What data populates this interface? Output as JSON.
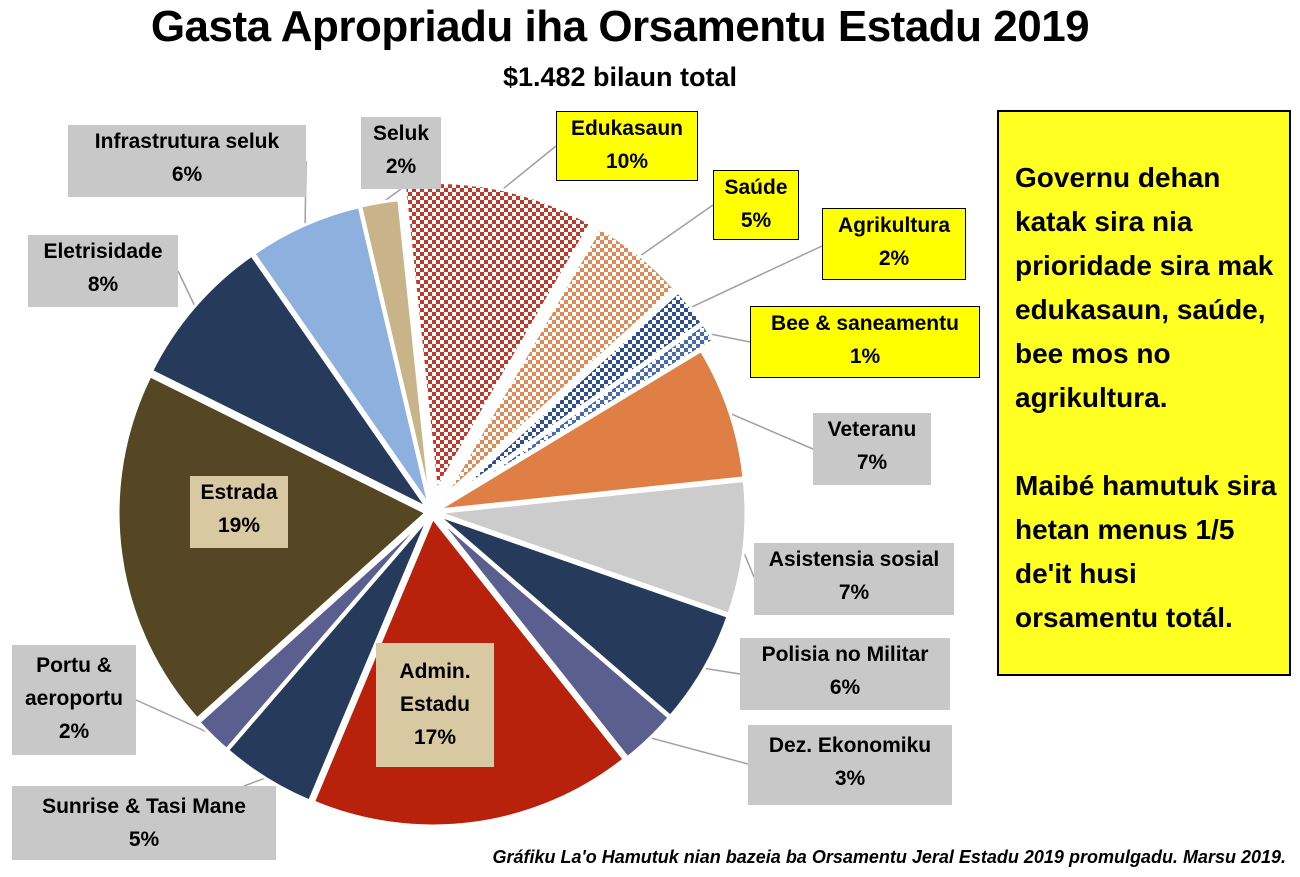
{
  "title": "Gasta Apropriadu iha Orsamentu Estadu 2019",
  "subtitle": "$1.482 bilaun total",
  "chart_data": {
    "type": "pie",
    "slices": [
      {
        "key": "edukasaun",
        "name": "Edukasaun",
        "value": 10,
        "label": "10%",
        "color": "#c0392b",
        "pattern": "check-red",
        "exploded": true
      },
      {
        "key": "saude",
        "name": "Saúde",
        "value": 5,
        "label": "5%",
        "color": "#e08a58",
        "pattern": "check-orange",
        "exploded": true
      },
      {
        "key": "agrikultura",
        "name": "Agrikultura",
        "value": 2,
        "label": "2%",
        "color": "#2f4f8f",
        "pattern": "check-blue",
        "exploded": true
      },
      {
        "key": "bee",
        "name": "Bee & saneamentu",
        "value": 1,
        "label": "1%",
        "color": "#4a6ab0",
        "pattern": "check-blue2",
        "exploded": true
      },
      {
        "key": "veteranu",
        "name": "Veteranu",
        "value": 7,
        "label": "7%",
        "color": "#e07f45"
      },
      {
        "key": "asistensia",
        "name": "Asistensia sosial",
        "value": 7,
        "label": "7%",
        "color": "#cccccc"
      },
      {
        "key": "polisia",
        "name": "Polisia no Militar",
        "value": 6,
        "label": "6%",
        "color": "#263a5c"
      },
      {
        "key": "dez",
        "name": "Dez. Ekonomiku",
        "value": 3,
        "label": "3%",
        "color": "#5b5f8f"
      },
      {
        "key": "admin",
        "name": "Admin. Estadu",
        "value": 17,
        "label": "17%",
        "color": "#b8210c"
      },
      {
        "key": "sunrise",
        "name": "Sunrise & Tasi Mane",
        "value": 5,
        "label": "5%",
        "color": "#263a5c"
      },
      {
        "key": "portu",
        "name": "Portu & aeroportu",
        "value": 2,
        "label": "2%",
        "color": "#5b5f8f"
      },
      {
        "key": "estrada",
        "name": "Estrada",
        "value": 19,
        "label": "19%",
        "color": "#554624"
      },
      {
        "key": "eletrisidade",
        "name": "Eletrisidade",
        "value": 8,
        "label": "8%",
        "color": "#263a5c"
      },
      {
        "key": "infrastrutura",
        "name": "Infrastrutura seluk",
        "value": 6,
        "label": "6%",
        "color": "#8eb0de"
      },
      {
        "key": "seluk",
        "name": "Seluk",
        "value": 2,
        "label": "2%",
        "color": "#c9b48a"
      }
    ]
  },
  "labels": {
    "edukasaun": {
      "line1": "Edukasaun",
      "line2": "10%"
    },
    "saude": {
      "line1": "Saúde",
      "line2": "5%"
    },
    "agrikultura": {
      "line1": "Agrikultura",
      "line2": "2%"
    },
    "bee": {
      "line1": "Bee & saneamentu",
      "line2": "1%"
    },
    "veteranu": {
      "line1": "Veteranu",
      "line2": "7%"
    },
    "asistensia": {
      "line1": "Asistensia sosial",
      "line2": "7%"
    },
    "polisia": {
      "line1": "Polisia no Militar",
      "line2": "6%"
    },
    "dez": {
      "line1": "Dez. Ekonomiku",
      "line2": "3%"
    },
    "admin": {
      "line1": "Admin.",
      "line2": "Estadu",
      "line3": "17%"
    },
    "sunrise": {
      "line1": "Sunrise & Tasi Mane",
      "line2": "5%"
    },
    "portu": {
      "line1": "Portu &",
      "line2": "aeroportu",
      "line3": "2%"
    },
    "estrada": {
      "line1": "Estrada",
      "line2": "19%"
    },
    "eletrisidade": {
      "line1": "Eletrisidade",
      "line2": "8%"
    },
    "infrastrutura": {
      "line1": "Infrastrutura seluk",
      "line2": "6%"
    },
    "seluk": {
      "line1": "Seluk",
      "line2": "2%"
    }
  },
  "note": {
    "para1": "Governu dehan katak sira nia prioridade sira mak edukasaun, saúde, bee mos no agrikultura.",
    "para2": "Maibé hamutuk sira hetan menus 1/5 de'it husi orsamentu totál."
  },
  "footer": "Gráfiku La'o Hamutuk nian bazeia ba Orsamentu Jeral Estadu 2019 promulgadu. Marsu 2019."
}
